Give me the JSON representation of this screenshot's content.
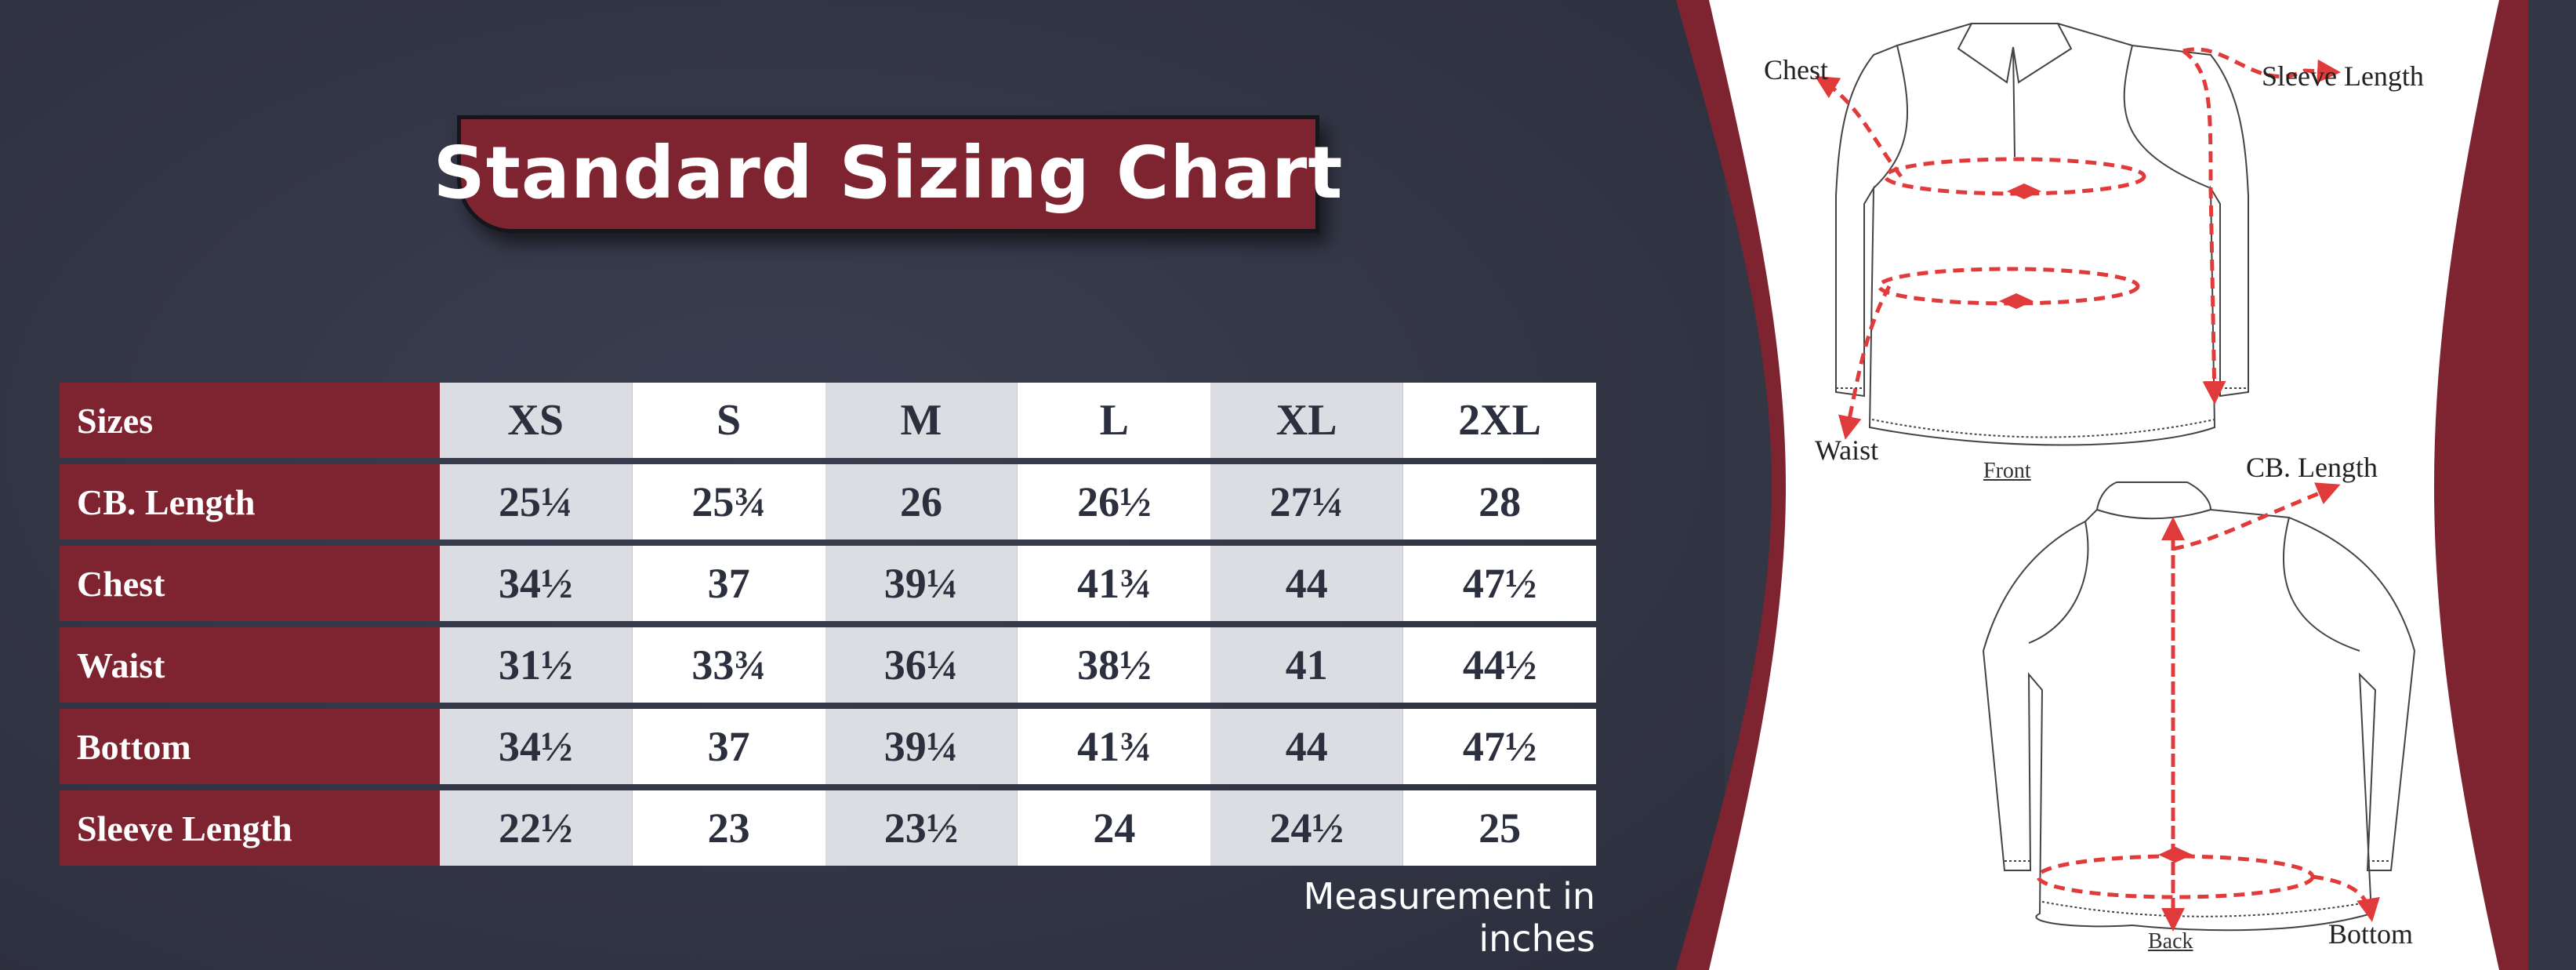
{
  "title": "Standard Sizing Chart",
  "table": {
    "corner_label": "Sizes",
    "sizes": [
      "XS",
      "S",
      "M",
      "L",
      "XL",
      "2XL"
    ],
    "rows": [
      {
        "label": "CB. Length",
        "values": [
          "25¼",
          "25¾",
          "26",
          "26½",
          "27¼",
          "28"
        ]
      },
      {
        "label": "Chest",
        "values": [
          "34½",
          "37",
          "39¼",
          "41¾",
          "44",
          "47½"
        ]
      },
      {
        "label": "Waist",
        "values": [
          "31½",
          "33¾",
          "36¼",
          "38½",
          "41",
          "44½"
        ]
      },
      {
        "label": "Bottom",
        "values": [
          "34½",
          "37",
          "39¼",
          "41¾",
          "44",
          "47½"
        ]
      },
      {
        "label": "Sleeve Length",
        "values": [
          "22½",
          "23",
          "23½",
          "24",
          "24½",
          "25"
        ]
      }
    ]
  },
  "units_note": "Measurement in inches",
  "diagram": {
    "front_caption": "Front",
    "back_caption": "Back",
    "labels": {
      "chest": "Chest",
      "sleeve_length": "Sleeve Length",
      "waist": "Waist",
      "cb_length": "CB. Length",
      "bottom": "Bottom"
    }
  },
  "colors": {
    "maroon": "#7d2430",
    "background": "#333645",
    "arrow": "#e03a3a",
    "cell_shade": "#dcdde3"
  }
}
